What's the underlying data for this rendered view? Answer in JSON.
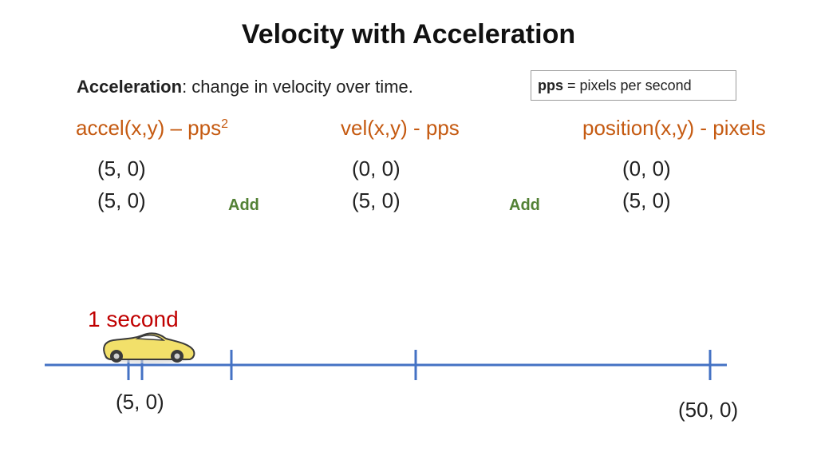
{
  "title": "Velocity with Acceleration",
  "definition": {
    "term": "Acceleration",
    "text": ": change in velocity over time."
  },
  "note": {
    "term": "pps",
    "text": " = pixels per second"
  },
  "columns": [
    {
      "header": "accel(x,y) – pps",
      "header_sup": "2",
      "values": [
        "(5, 0)",
        "(5, 0)"
      ]
    },
    {
      "header": "vel(x,y) - pps",
      "header_sup": "",
      "values": [
        "(0, 0)",
        "(5, 0)"
      ]
    },
    {
      "header": "position(x,y) - pixels",
      "header_sup": "",
      "values": [
        "(0, 0)",
        "(5, 0)"
      ]
    }
  ],
  "add_labels": [
    "Add",
    "Add"
  ],
  "timeline": {
    "time_label": "1 second",
    "start_label": "(5, 0)",
    "end_label": "(50, 0)"
  },
  "colors": {
    "header": "#c55a11",
    "add": "#538135",
    "time": "#c00000",
    "axis": "#4472c4",
    "car_body": "#f2e06a"
  },
  "icons": {
    "car": "race-car-icon"
  }
}
